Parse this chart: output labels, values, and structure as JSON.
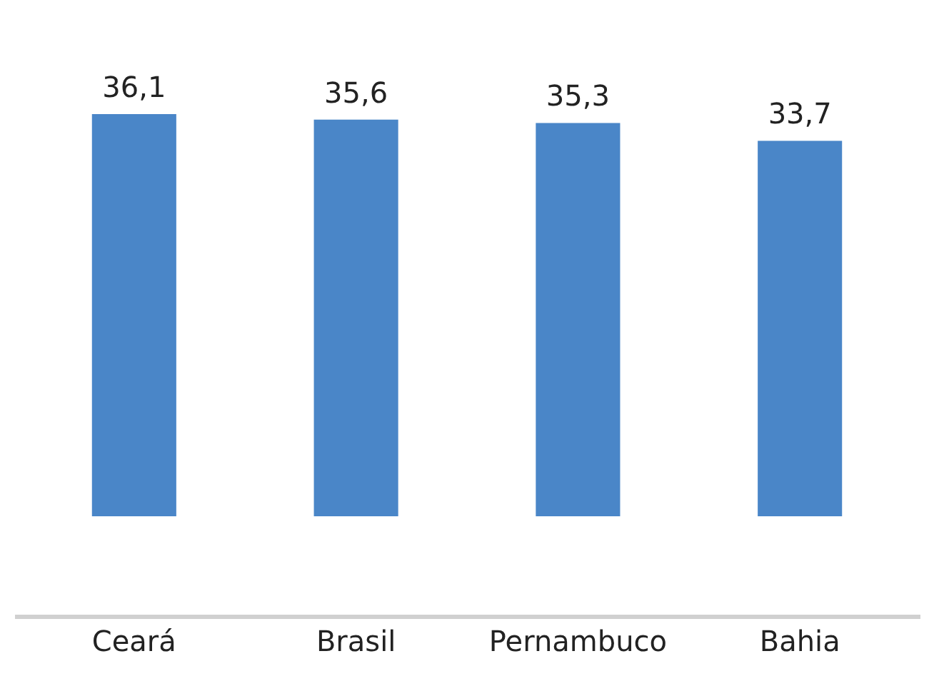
{
  "chart_data": {
    "type": "bar",
    "categories": [
      "Ceará",
      "Brasil",
      "Pernambuco",
      "Bahia"
    ],
    "values": [
      36.1,
      35.6,
      35.3,
      33.7
    ],
    "value_labels": [
      "36,1",
      "35,6",
      "35,3",
      "33,7"
    ],
    "color": "#4a86c8",
    "legend": false,
    "tick_labels": "x",
    "grid": false
  }
}
